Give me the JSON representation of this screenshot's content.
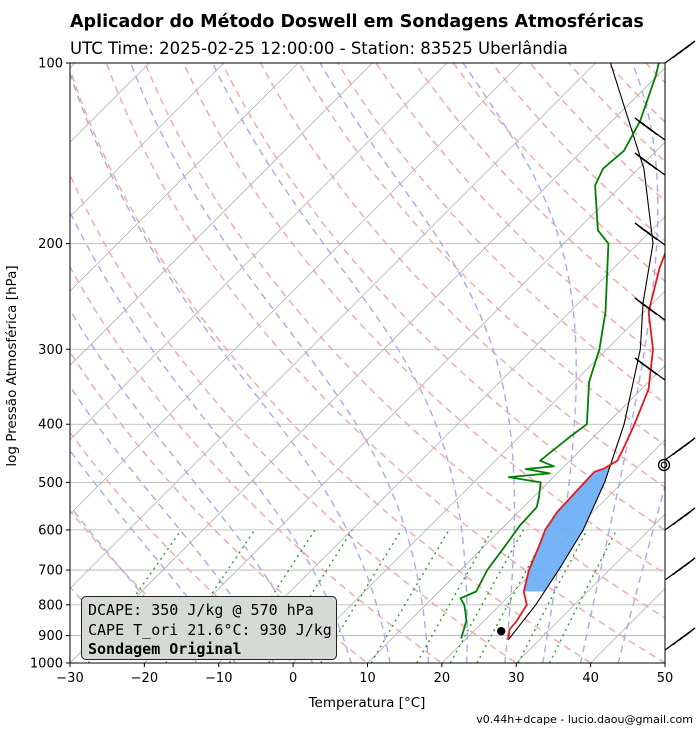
{
  "header": {
    "title": "Aplicador do Método Doswell em Sondagens Atmosféricas",
    "subtitle": "UTC Time: 2025-02-25 12:00:00 - Station: 83525 Uberlândia"
  },
  "footer": {
    "text": "v0.44h+dcape  -  lucio.daou@gmail.com"
  },
  "info_box": {
    "line1": "DCAPE: 350 J/kg @ 570 hPa",
    "line2": "CAPE T_ori 21.6°C: 930 J/kg",
    "line3": "Sondagem Original"
  },
  "colors": {
    "temperature": "#e41a1c",
    "dewpoint": "#008000",
    "parcel": "#000000",
    "cape_fill": "#6fb0f5",
    "dry_adiabats": "#f4a6a6",
    "moist_adiabats": "#a9a9f0",
    "mixing_ratio": "#2ca02c",
    "isotherms": "#b0b0b0"
  },
  "chart_data": {
    "type": "line",
    "chart_kind": "skew-t log-p",
    "xlabel": "Temperatura [°C]",
    "ylabel": "log Pressão Atmosférica [hPa]",
    "xlim": [
      -30,
      50
    ],
    "ylim": [
      1000,
      100
    ],
    "y_scale": "log",
    "x_ticks": [
      -30,
      -20,
      -10,
      0,
      10,
      20,
      30,
      40,
      50
    ],
    "x_tick_labels": [
      "−30",
      "−20",
      "−10",
      "0",
      "10",
      "20",
      "30",
      "40",
      "50"
    ],
    "y_ticks": [
      100,
      200,
      300,
      400,
      500,
      600,
      700,
      800,
      900,
      1000
    ],
    "y_tick_labels": [
      "100",
      "200",
      "300",
      "400",
      "500",
      "600",
      "700",
      "800",
      "900",
      "1000"
    ],
    "grid": true,
    "series": [
      {
        "name": "temperature",
        "points": [
          {
            "p": 915,
            "t": 25.8
          },
          {
            "p": 880,
            "t": 24.6
          },
          {
            "p": 850,
            "t": 24.4
          },
          {
            "p": 800,
            "t": 23.6
          },
          {
            "p": 760,
            "t": 21.4
          },
          {
            "p": 700,
            "t": 19.2
          },
          {
            "p": 640,
            "t": 17.4
          },
          {
            "p": 600,
            "t": 16.0
          },
          {
            "p": 560,
            "t": 15.2
          },
          {
            "p": 520,
            "t": 15.0
          },
          {
            "p": 500,
            "t": 14.9
          },
          {
            "p": 480,
            "t": 14.8
          },
          {
            "p": 475,
            "t": 15.6
          },
          {
            "p": 460,
            "t": 16.4
          },
          {
            "p": 440,
            "t": 15.6
          },
          {
            "p": 400,
            "t": 13.8
          },
          {
            "p": 350,
            "t": 11.0
          },
          {
            "p": 300,
            "t": 6.2
          },
          {
            "p": 260,
            "t": 0.6
          },
          {
            "p": 220,
            "t": -3.8
          },
          {
            "p": 190,
            "t": -7.0
          },
          {
            "p": 170,
            "t": -8.8
          },
          {
            "p": 160,
            "t": -9.8
          },
          {
            "p": 150,
            "t": -11.6
          },
          {
            "p": 140,
            "t": -12.2
          },
          {
            "p": 130,
            "t": -11.0
          },
          {
            "p": 117,
            "t": -9.0
          },
          {
            "p": 108,
            "t": -5.0
          },
          {
            "p": 100,
            "t": -1.8
          }
        ]
      },
      {
        "name": "dewpoint",
        "points": [
          {
            "p": 910,
            "t": 19.3
          },
          {
            "p": 850,
            "t": 17.6
          },
          {
            "p": 820,
            "t": 16.2
          },
          {
            "p": 800,
            "t": 15.2
          },
          {
            "p": 780,
            "t": 13.8
          },
          {
            "p": 760,
            "t": 15.0
          },
          {
            "p": 700,
            "t": 13.6
          },
          {
            "p": 640,
            "t": 12.8
          },
          {
            "p": 590,
            "t": 12.0
          },
          {
            "p": 550,
            "t": 11.8
          },
          {
            "p": 530,
            "t": 10.8
          },
          {
            "p": 500,
            "t": 9.0
          },
          {
            "p": 490,
            "t": 4.0
          },
          {
            "p": 483,
            "t": 9.0
          },
          {
            "p": 475,
            "t": 5.2
          },
          {
            "p": 470,
            "t": 8.6
          },
          {
            "p": 460,
            "t": 6.0
          },
          {
            "p": 420,
            "t": 6.8
          },
          {
            "p": 400,
            "t": 7.4
          },
          {
            "p": 340,
            "t": 2.0
          },
          {
            "p": 300,
            "t": -1.0
          },
          {
            "p": 260,
            "t": -5.2
          },
          {
            "p": 200,
            "t": -14.0
          },
          {
            "p": 190,
            "t": -17.2
          },
          {
            "p": 160,
            "t": -23.6
          },
          {
            "p": 150,
            "t": -24.8
          },
          {
            "p": 140,
            "t": -24.4
          },
          {
            "p": 125,
            "t": -26.2
          },
          {
            "p": 105,
            "t": -30.2
          },
          {
            "p": 100,
            "t": -31.5
          }
        ]
      },
      {
        "name": "parcel",
        "points": [
          {
            "p": 915,
            "t": 25.8
          },
          {
            "p": 800,
            "t": 24.8
          },
          {
            "p": 700,
            "t": 23.2
          },
          {
            "p": 600,
            "t": 21.1
          },
          {
            "p": 500,
            "t": 17.6
          },
          {
            "p": 400,
            "t": 12.4
          },
          {
            "p": 300,
            "t": 4.5
          },
          {
            "p": 250,
            "t": -1.5
          },
          {
            "p": 200,
            "t": -8.0
          },
          {
            "p": 150,
            "t": -19.3
          },
          {
            "p": 100,
            "t": -38.0
          }
        ]
      }
    ],
    "markers": [
      {
        "name": "surface point",
        "p": 885,
        "t": 23.7
      }
    ]
  }
}
